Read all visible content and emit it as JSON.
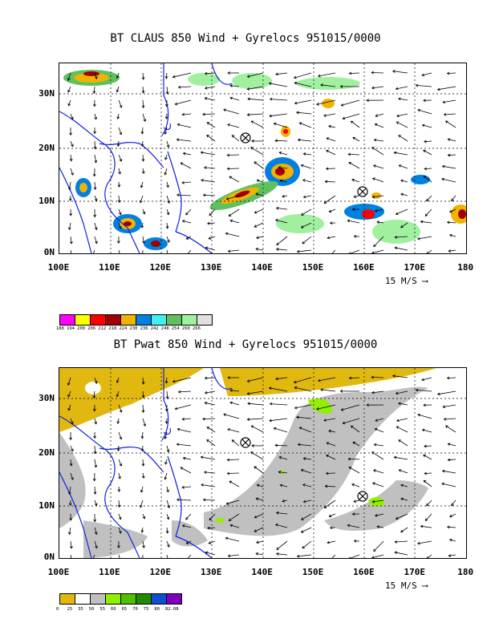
{
  "top": {
    "title": "BT CLAUS 850 Wind + Gyrelocs 951015/0000",
    "lat_labels": [
      "30N",
      "20N",
      "10N",
      "0N"
    ],
    "lon_labels": [
      "100E",
      "110E",
      "120E",
      "130E",
      "140E",
      "150E",
      "160E",
      "170E",
      "180"
    ],
    "ref_vector": "15 M/S",
    "colorbar": {
      "labels": [
        "188",
        "194",
        "200",
        "206",
        "212",
        "218",
        "224",
        "230",
        "236",
        "242",
        "248",
        "254",
        "260",
        "266"
      ],
      "colors": [
        "#ff00ff",
        "#ffff00",
        "#ff0000",
        "#a00000",
        "#f0b400",
        "#0080e0",
        "#40f0f0",
        "#60c060",
        "#a0f0a0",
        "#e0e0e0"
      ]
    }
  },
  "bottom": {
    "title": "BT Pwat 850 Wind + Gyrelocs 951015/0000",
    "lat_labels": [
      "30N",
      "20N",
      "10N",
      "0N"
    ],
    "lon_labels": [
      "100E",
      "110E",
      "120E",
      "130E",
      "140E",
      "150E",
      "160E",
      "170E",
      "180"
    ],
    "ref_vector": "15 M/S",
    "colorbar": {
      "labels": [
        "0",
        "25",
        "35",
        "50",
        "55",
        "60",
        "65",
        "70",
        "75",
        "80",
        "82.08"
      ],
      "colors": [
        "#e0b810",
        "#ffffff",
        "#c0c0c0",
        "#90f000",
        "#50c000",
        "#208a00",
        "#1050d0",
        "#8000c0"
      ]
    }
  },
  "gyrelocs": [
    "⊗",
    "⊗"
  ]
}
